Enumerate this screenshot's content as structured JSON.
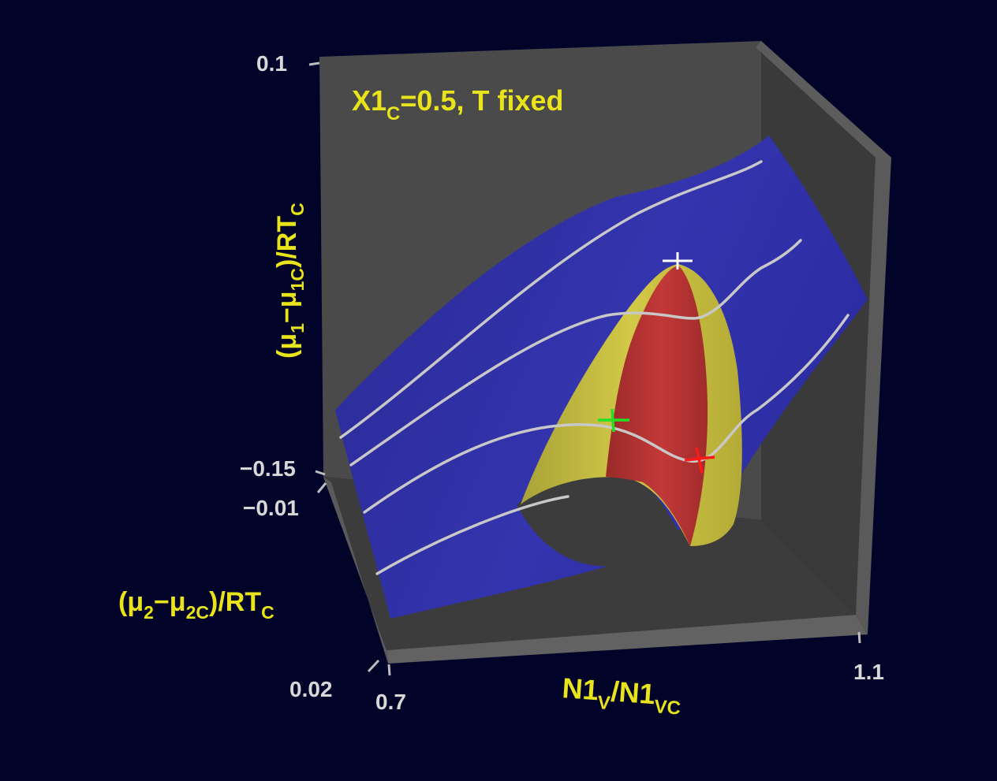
{
  "annotation": {
    "main": "X1",
    "sub": "C",
    "rest": "=0.5,  T  fixed"
  },
  "axes": {
    "z": {
      "label_open": "(μ",
      "label_sub1": "1",
      "label_mid": "−μ",
      "label_sub2": "1C",
      "label_close": ")/RT",
      "label_sub3": "C",
      "tick_top": "0.1",
      "tick_bottom": "−0.15"
    },
    "y": {
      "label_open": "(μ",
      "label_sub1": "2",
      "label_mid": "−μ",
      "label_sub2": "2C",
      "label_close": ")/RT",
      "label_sub3": "C",
      "tick_near": "−0.01",
      "tick_far": "0.02"
    },
    "x": {
      "label_main1": "N1",
      "label_sub1": "V",
      "label_slash": "/N1",
      "label_sub2": "VC",
      "tick_left": "0.7",
      "tick_right": "1.1"
    }
  },
  "colors": {
    "background": "#020328",
    "box": "#4a4a4a",
    "surface_stable": "#2e2e9e",
    "surface_metastable": "#c8bf3c",
    "surface_unstable": "#b63030",
    "contour": "#c8c8c8",
    "text": "#e8e31a",
    "tick_text": "#d8d8d8",
    "marker_critical": "#ffffff",
    "marker_green": "#22e022",
    "marker_red": "#ff1a1a"
  }
}
